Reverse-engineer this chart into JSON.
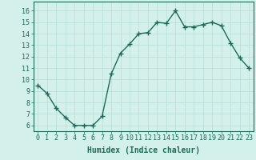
{
  "x": [
    0,
    1,
    2,
    3,
    4,
    5,
    6,
    7,
    8,
    9,
    10,
    11,
    12,
    13,
    14,
    15,
    16,
    17,
    18,
    19,
    20,
    21,
    22,
    23
  ],
  "y": [
    9.5,
    8.8,
    7.5,
    6.7,
    6.0,
    6.0,
    6.0,
    6.8,
    10.5,
    12.3,
    13.1,
    14.0,
    14.1,
    15.0,
    14.9,
    16.0,
    14.6,
    14.6,
    14.8,
    15.0,
    14.7,
    13.2,
    11.9,
    11.0
  ],
  "line_color": "#1a6b5a",
  "marker": "+",
  "marker_size": 4,
  "marker_lw": 1.0,
  "bg_color": "#d4f0eb",
  "grid_color": "#b8ddd8",
  "xlabel": "Humidex (Indice chaleur)",
  "ylim": [
    5.5,
    16.8
  ],
  "xlim": [
    -0.5,
    23.5
  ],
  "yticks": [
    6,
    7,
    8,
    9,
    10,
    11,
    12,
    13,
    14,
    15,
    16
  ],
  "xticks": [
    0,
    1,
    2,
    3,
    4,
    5,
    6,
    7,
    8,
    9,
    10,
    11,
    12,
    13,
    14,
    15,
    16,
    17,
    18,
    19,
    20,
    21,
    22,
    23
  ],
  "xlabel_fontsize": 7,
  "tick_fontsize": 6,
  "axis_color": "#1a6b5a",
  "line_width": 1.0
}
